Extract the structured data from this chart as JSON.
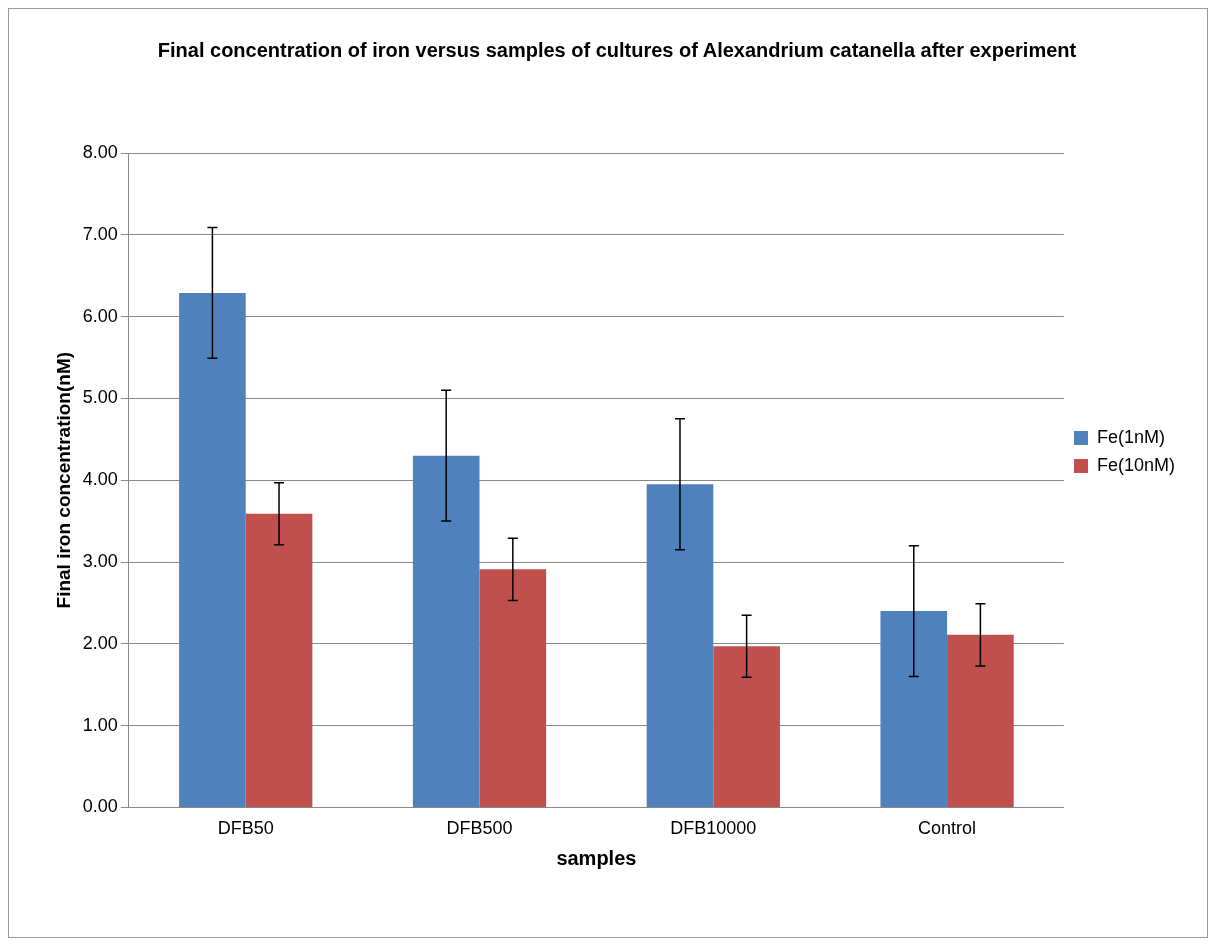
{
  "chart_data": {
    "type": "bar",
    "title": "Final concentration of iron versus samples of cultures of Alexandrium catanella after experiment",
    "xlabel": "samples",
    "ylabel": "Final iron concentration(nM)",
    "categories": [
      "DFB50",
      "DFB500",
      "DFB10000",
      "Control"
    ],
    "series": [
      {
        "name": "Fe(1nM)",
        "color": "#4f81bd",
        "values": [
          6.29,
          4.3,
          3.95,
          2.4
        ],
        "errors": [
          0.8,
          0.8,
          0.8,
          0.8
        ]
      },
      {
        "name": "Fe(10nM)",
        "color": "#c0504d",
        "values": [
          3.59,
          2.91,
          1.97,
          2.11
        ],
        "errors": [
          0.38,
          0.38,
          0.38,
          0.38
        ]
      }
    ],
    "ylim": [
      0,
      8
    ],
    "yticks": [
      {
        "value": 0,
        "label": "0.00"
      },
      {
        "value": 1,
        "label": "1.00"
      },
      {
        "value": 2,
        "label": "2.00"
      },
      {
        "value": 3,
        "label": "3.00"
      },
      {
        "value": 4,
        "label": "4.00"
      },
      {
        "value": 5,
        "label": "5.00"
      },
      {
        "value": 6,
        "label": "6.00"
      },
      {
        "value": 7,
        "label": "7.00"
      },
      {
        "value": 8,
        "label": "8.00"
      }
    ],
    "grid": "y",
    "legend": "right"
  }
}
